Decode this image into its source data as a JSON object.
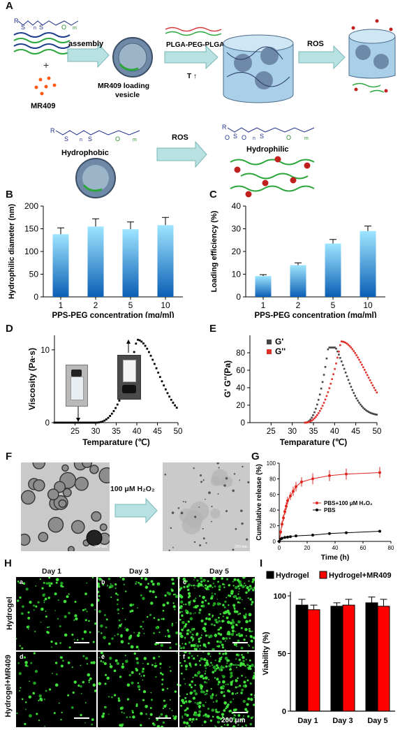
{
  "panel_letters": {
    "A": "A",
    "B": "B",
    "C": "C",
    "D": "D",
    "E": "E",
    "F": "F",
    "G": "G",
    "H": "H",
    "I": "I"
  },
  "panelA": {
    "assembly": "assembly",
    "plus": "+",
    "mr409": "MR409",
    "vesicle_label_1": "MR409 loading",
    "vesicle_label_2": "vesicle",
    "plga": "PLGA-PEG-PLGA",
    "temp": "T ↑",
    "ros": "ROS",
    "ros2": "ROS",
    "hydrophobic": "Hydrophobic",
    "hydrophilic": "Hydrophilic",
    "chem_R": "R",
    "chem_S": "S",
    "chem_n": "n",
    "chem_O": "O",
    "chem_m": "m"
  },
  "panelF": {
    "arrow_label": "100 μM H₂O₂",
    "scale_bar": "200 nm"
  },
  "panelH": {
    "columns": [
      "Day 1",
      "Day 3",
      "Day 5"
    ],
    "rows": [
      "Hydrogel",
      "Hydrogel+MR409"
    ],
    "sublabels": [
      "a",
      "b",
      "c",
      "d",
      "e",
      "f"
    ],
    "scale_bar": "200 μm"
  },
  "colors": {
    "bar_blue": "#1e90d8",
    "bar_red": "#ff0000",
    "bar_black": "#000000",
    "gp": "#444444",
    "gpp": "#e0302a"
  },
  "chart_data": [
    {
      "id": "B",
      "type": "bar",
      "categories": [
        "1",
        "2",
        "5",
        "10"
      ],
      "values": [
        138,
        155,
        149,
        158
      ],
      "errors": [
        14,
        17,
        16,
        17
      ],
      "xlabel": "PPS-PEG concentration (mg/ml)",
      "ylabel": "Hydrophilic diameter (nm)",
      "ylim": [
        0,
        200
      ],
      "yticks": [
        "0",
        "50",
        "100",
        "150",
        "200"
      ]
    },
    {
      "id": "C",
      "type": "bar",
      "categories": [
        "1",
        "2",
        "5",
        "10"
      ],
      "values": [
        9.2,
        14,
        23.5,
        29
      ],
      "errors": [
        0.6,
        1,
        1.8,
        2.2
      ],
      "xlabel": "PPS-PEG concentration (mg/ml)",
      "ylabel": "Loading efficiency (%)",
      "ylim": [
        0,
        40
      ],
      "yticks": [
        "0",
        "10",
        "20",
        "30",
        "40"
      ]
    },
    {
      "id": "D",
      "type": "scatter",
      "xlabel": "Temparature (℃)",
      "ylabel": "Viscosity (Pa·s)",
      "xlim": [
        20,
        50
      ],
      "ylim": [
        0,
        12
      ],
      "xticks": [
        "25",
        "30",
        "35",
        "40",
        "45",
        "50"
      ],
      "yticks": [
        "0",
        "10"
      ],
      "peak": {
        "x": 40,
        "y": 11.4
      }
    },
    {
      "id": "E",
      "type": "scatter",
      "xlabel": "Temparature (℃)",
      "ylabel": "G' G''(Pa)",
      "xlim": [
        20,
        50
      ],
      "ylim": [
        0,
        100
      ],
      "xticks": [
        "25",
        "30",
        "35",
        "40",
        "45",
        "50"
      ],
      "yticks": [
        "0",
        "20",
        "40",
        "60",
        "80"
      ],
      "series": [
        {
          "name": "G'",
          "peak_x": 38.5,
          "peak_y": 86
        },
        {
          "name": "G''",
          "peak_x": 41.5,
          "peak_y": 93
        }
      ]
    },
    {
      "id": "G",
      "type": "line",
      "xlabel": "Time (h)",
      "ylabel": "Cumulative release (%)",
      "xlim": [
        0,
        80
      ],
      "ylim": [
        0,
        100
      ],
      "xticks": [
        "0",
        "20",
        "40",
        "60",
        "80"
      ],
      "yticks": [
        "0",
        "20",
        "40",
        "60",
        "80",
        "100"
      ],
      "series": [
        {
          "name": "PBS+100 μM H₂O₂",
          "x": [
            0,
            1,
            2,
            3,
            4,
            5,
            6,
            8,
            10,
            12,
            16,
            24,
            36,
            48,
            72
          ],
          "y": [
            0,
            12,
            22,
            30,
            38,
            45,
            52,
            58,
            64,
            70,
            76,
            80,
            84,
            86,
            88
          ],
          "err": [
            1,
            3,
            4,
            4,
            4,
            5,
            5,
            5,
            6,
            6,
            6,
            7,
            7,
            7,
            7
          ]
        },
        {
          "name": "PBS",
          "x": [
            0,
            1,
            2,
            4,
            6,
            8,
            12,
            24,
            36,
            48,
            72
          ],
          "y": [
            0,
            3,
            4,
            5,
            5.5,
            6,
            7,
            8,
            10,
            11,
            13
          ],
          "err": [
            0.5,
            1,
            1,
            1,
            1,
            1,
            1,
            1,
            1,
            1,
            1
          ]
        }
      ]
    },
    {
      "id": "I",
      "type": "bar",
      "categories": [
        "Day 1",
        "Day 3",
        "Day 5"
      ],
      "series": [
        {
          "name": "Hydrogel",
          "values": [
            92,
            91,
            94
          ],
          "errors": [
            5,
            3,
            5
          ]
        },
        {
          "name": "Hydrogel+MR409",
          "values": [
            88,
            92,
            91
          ],
          "errors": [
            4,
            5,
            6
          ]
        }
      ],
      "ylabel": "Viability (%)",
      "ylim": [
        0,
        100
      ],
      "yticks": [
        "0",
        "50",
        "100"
      ]
    }
  ]
}
